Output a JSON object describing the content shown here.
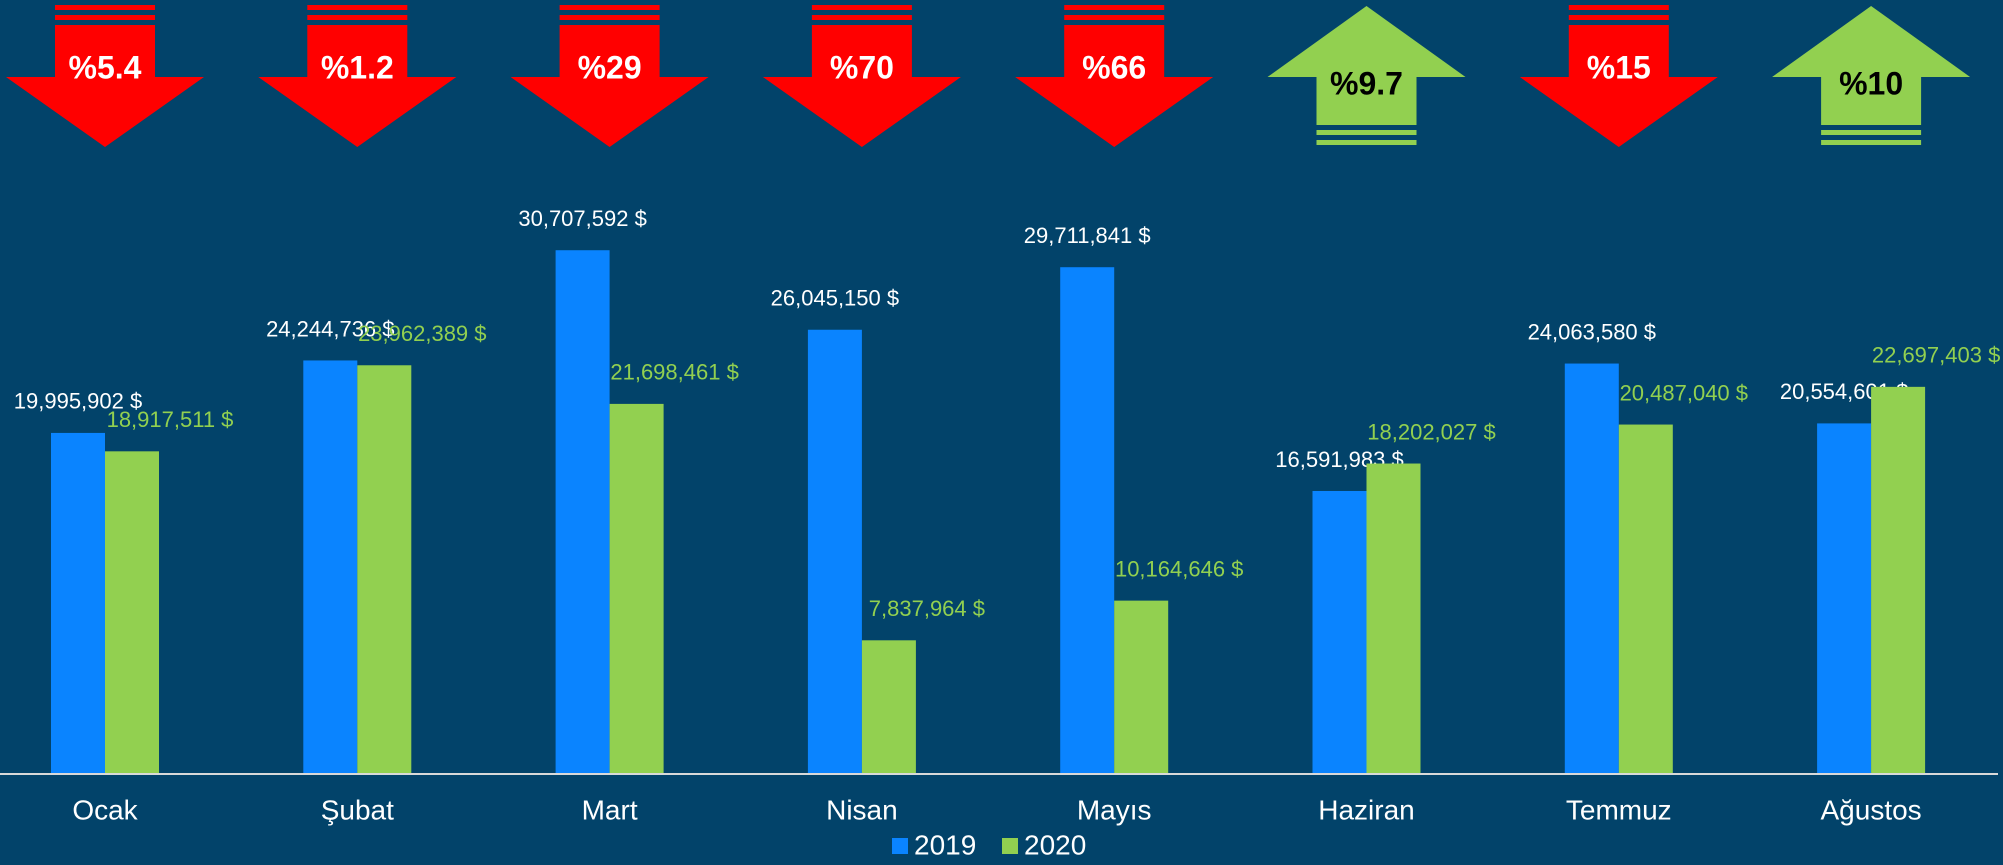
{
  "chart_data": {
    "type": "bar",
    "categories": [
      "Ocak",
      "Şubat",
      "Mart",
      "Nisan",
      "Mayıs",
      "Haziran",
      "Temmuz",
      "Ağustos"
    ],
    "series": [
      {
        "name": "2019",
        "color": "#0a84ff",
        "label_color": "#ffffff",
        "values": [
          19995902,
          24244736,
          30707592,
          26045150,
          29711841,
          16591983,
          24063580,
          20554601
        ],
        "value_labels": [
          "19,995,902 $",
          "24,244,736 $",
          "30,707,592 $",
          "26,045,150 $",
          "29,711,841 $",
          "16,591,983 $",
          "24,063,580 $",
          "20,554,601 $"
        ]
      },
      {
        "name": "2020",
        "color": "#92d050",
        "label_color": "#92d050",
        "values": [
          18917511,
          23962389,
          21698461,
          7837964,
          10164646,
          18202027,
          20487040,
          22697403
        ],
        "value_labels": [
          "18,917,511 $",
          "23,962,389 $",
          "21,698,461 $",
          "7,837,964 $",
          "10,164,646 $",
          "18,202,027 $",
          "20,487,040 $",
          "22,697,403 $"
        ]
      }
    ],
    "changes": [
      {
        "value": 5.4,
        "label": "%5.4",
        "direction": "down"
      },
      {
        "value": 1.2,
        "label": "%1.2",
        "direction": "down"
      },
      {
        "value": 29,
        "label": "%29",
        "direction": "down"
      },
      {
        "value": 70,
        "label": "%70",
        "direction": "down"
      },
      {
        "value": 66,
        "label": "%66",
        "direction": "down"
      },
      {
        "value": 9.7,
        "label": "%9.7",
        "direction": "up"
      },
      {
        "value": 15,
        "label": "%15",
        "direction": "down"
      },
      {
        "value": 10,
        "label": "%10",
        "direction": "up"
      }
    ],
    "ylim": [
      0,
      35000000
    ],
    "legend": "bottom"
  }
}
